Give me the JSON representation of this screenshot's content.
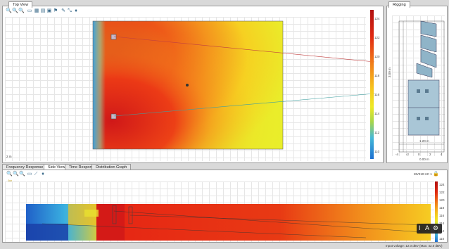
{
  "top_view": {
    "tab_label": "Top View",
    "corner_label": "2 m"
  },
  "rigging": {
    "tab_label": "Rigging",
    "left_axis_label": "3.00 m",
    "bottom_axis_label": "0.00 m",
    "bottom_dim_label": "1.20 m",
    "x_ticks": [
      "-4",
      "-2",
      "0",
      "2",
      "4"
    ]
  },
  "color_scale": {
    "labels": [
      "124",
      "122",
      "120",
      "118",
      "116",
      "114",
      "112",
      "110"
    ],
    "colors": [
      "#b01010",
      "#e02a12",
      "#f07a1a",
      "#f6c21e",
      "#eee926",
      "#a8d64a",
      "#45b8d8",
      "#1d6fd0"
    ]
  },
  "bottom_tabs": [
    "Frequency Response",
    "Side View",
    "Time Response",
    "Distribution Graph"
  ],
  "active_bottom_tab": 1,
  "side_view": {
    "device_label": "MV210 HC 1",
    "scale_labels": [
      "124",
      "122",
      "120",
      "118",
      "116",
      "114",
      "112",
      "110"
    ]
  },
  "overlay_controls": [
    "I",
    "A",
    "⚙"
  ],
  "status_bar": {
    "text": "Input voltage: 12.0 dBV (Max: 42.0 dBV)"
  }
}
